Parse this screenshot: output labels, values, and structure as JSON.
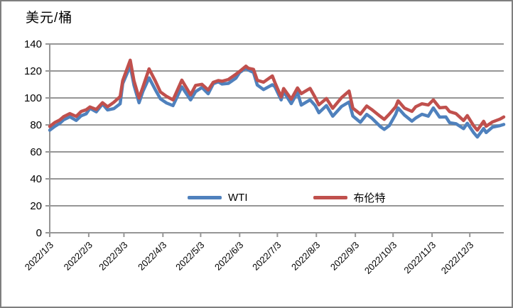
{
  "chart_data": {
    "type": "line",
    "title": "美元/桶",
    "ylim": [
      0,
      140
    ],
    "yticks": [
      0,
      20,
      40,
      60,
      80,
      100,
      120,
      140
    ],
    "x_tick_labels": [
      "2022/1/3",
      "2022/2/3",
      "2022/3/3",
      "2022/4/3",
      "2022/5/3",
      "2022/6/3",
      "2022/7/3",
      "2022/8/3",
      "2022/9/3",
      "2022/10/3",
      "2022/11/3",
      "2022/12/3"
    ],
    "grid": true,
    "legend_position": "inside-bottom-center",
    "x_dates": [
      "2022/1/3",
      "2022/1/7",
      "2022/1/11",
      "2022/1/14",
      "2022/1/19",
      "2022/1/24",
      "2022/1/28",
      "2022/2/1",
      "2022/2/4",
      "2022/2/9",
      "2022/2/14",
      "2022/2/18",
      "2022/2/23",
      "2022/2/28",
      "2022/3/2",
      "2022/3/8",
      "2022/3/11",
      "2022/3/15",
      "2022/3/18",
      "2022/3/23",
      "2022/3/28",
      "2022/4/1",
      "2022/4/6",
      "2022/4/11",
      "2022/4/18",
      "2022/4/25",
      "2022/4/29",
      "2022/5/4",
      "2022/5/9",
      "2022/5/13",
      "2022/5/17",
      "2022/5/20",
      "2022/5/25",
      "2022/5/31",
      "2022/6/3",
      "2022/6/8",
      "2022/6/10",
      "2022/6/14",
      "2022/6/17",
      "2022/6/22",
      "2022/6/29",
      "2022/7/1",
      "2022/7/6",
      "2022/7/8",
      "2022/7/14",
      "2022/7/19",
      "2022/7/22",
      "2022/7/29",
      "2022/8/2",
      "2022/8/5",
      "2022/8/11",
      "2022/8/16",
      "2022/8/23",
      "2022/8/29",
      "2022/9/1",
      "2022/9/7",
      "2022/9/12",
      "2022/9/16",
      "2022/9/23",
      "2022/9/26",
      "2022/9/30",
      "2022/10/5",
      "2022/10/7",
      "2022/10/12",
      "2022/10/18",
      "2022/10/21",
      "2022/10/26",
      "2022/10/31",
      "2022/11/4",
      "2022/11/9",
      "2022/11/14",
      "2022/11/17",
      "2022/11/22",
      "2022/11/28",
      "2022/12/1",
      "2022/12/6",
      "2022/12/9",
      "2022/12/14",
      "2022/12/16",
      "2022/12/21",
      "2022/12/27",
      "2022/12/30"
    ],
    "series": [
      {
        "name": "WTI",
        "color": "#4F81BD",
        "values": [
          76.1,
          78.9,
          81.2,
          83.8,
          86.0,
          83.3,
          86.8,
          88.2,
          92.3,
          89.7,
          95.5,
          91.1,
          92.1,
          95.7,
          110.6,
          123.7,
          109.3,
          96.4,
          104.7,
          114.9,
          106.0,
          99.3,
          96.2,
          94.3,
          108.2,
          98.5,
          104.7,
          107.8,
          103.1,
          110.5,
          112.0,
          110.3,
          110.8,
          114.7,
          118.9,
          122.1,
          120.7,
          118.9,
          109.6,
          106.2,
          109.8,
          108.4,
          98.5,
          104.8,
          95.8,
          104.2,
          94.7,
          98.6,
          94.4,
          89.0,
          94.3,
          86.5,
          93.7,
          97.0,
          86.6,
          81.9,
          87.8,
          85.1,
          78.7,
          76.7,
          79.5,
          87.8,
          92.6,
          87.3,
          82.8,
          85.1,
          87.9,
          86.5,
          92.6,
          85.8,
          85.9,
          81.6,
          80.9,
          77.2,
          81.2,
          74.3,
          71.0,
          77.3,
          74.3,
          78.3,
          79.5,
          80.3
        ]
      },
      {
        "name": "布伦特",
        "color": "#C0504D",
        "values": [
          78.9,
          81.8,
          83.7,
          86.1,
          88.4,
          86.3,
          90.0,
          91.2,
          93.3,
          91.5,
          96.5,
          93.5,
          96.8,
          101.0,
          112.9,
          128.0,
          112.7,
          99.9,
          107.9,
          121.6,
          112.5,
          104.4,
          101.1,
          98.5,
          113.2,
          102.3,
          109.3,
          110.1,
          105.9,
          111.6,
          112.9,
          112.4,
          113.7,
          117.6,
          119.7,
          123.6,
          122.0,
          121.2,
          113.1,
          111.7,
          116.3,
          111.6,
          100.7,
          107.0,
          99.1,
          107.4,
          103.2,
          107.1,
          100.5,
          94.9,
          99.6,
          92.3,
          100.2,
          105.1,
          92.4,
          88.0,
          94.0,
          91.4,
          86.2,
          84.1,
          88.0,
          93.4,
          97.9,
          92.5,
          90.0,
          93.5,
          95.7,
          94.8,
          98.6,
          92.7,
          93.1,
          89.8,
          88.4,
          83.2,
          86.9,
          79.4,
          76.1,
          82.7,
          79.0,
          82.2,
          84.3,
          85.9
        ]
      }
    ],
    "colors": {
      "grid": "#969696",
      "axis": "#969696",
      "border": "#7f7f7f",
      "background": "#ffffff",
      "text": "#000000"
    }
  }
}
